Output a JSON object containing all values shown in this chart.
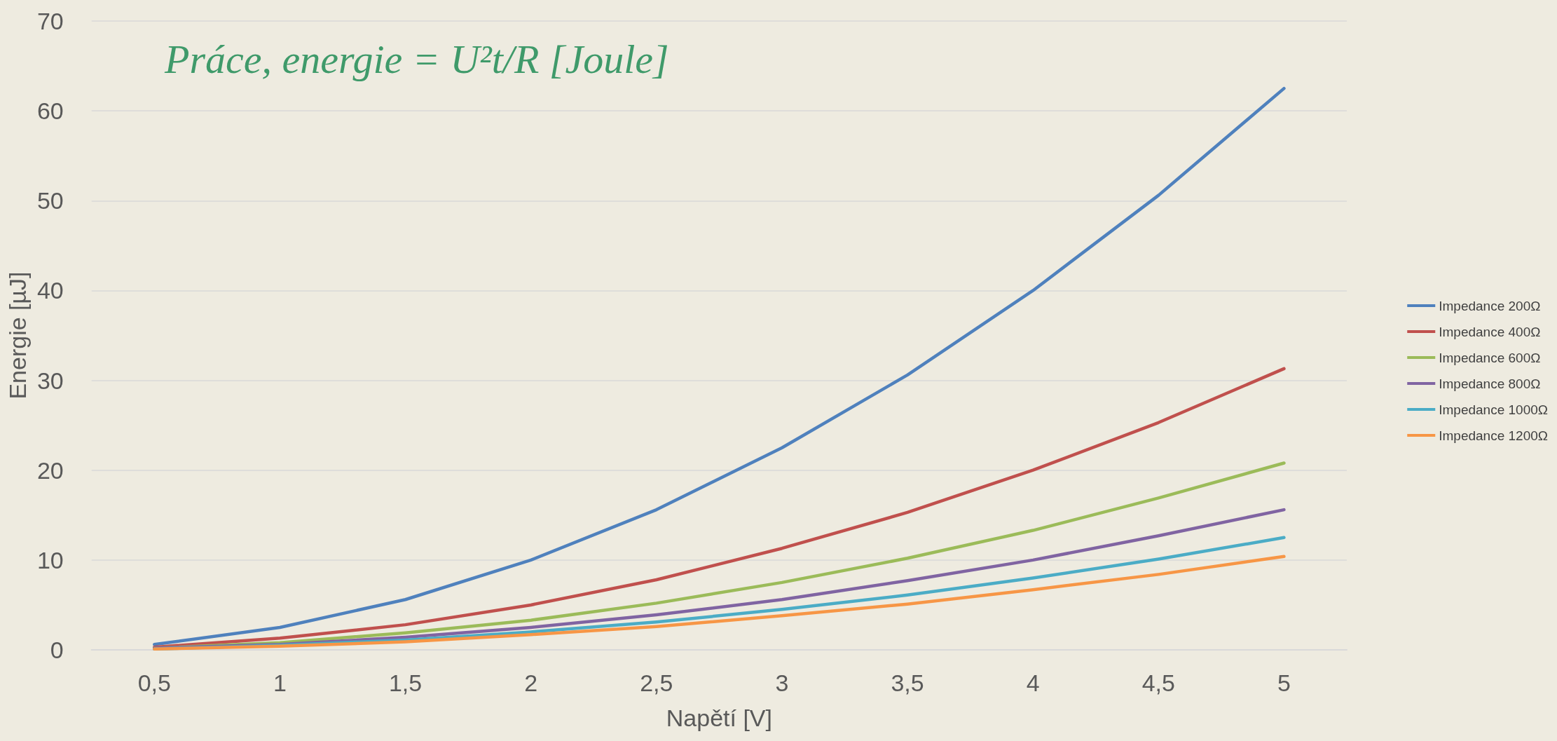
{
  "chart_data": {
    "type": "line",
    "xlabel": "Napětí [V]",
    "ylabel": "Energie [µJ]",
    "annotations": [
      "Práce, energie = U²t/R [Joule]"
    ],
    "categories": [
      "0,5",
      "1",
      "1,5",
      "2",
      "2,5",
      "3",
      "3,5",
      "4",
      "4,5",
      "5"
    ],
    "series": [
      {
        "name": "Impedance 200Ω",
        "color": "#4f81bd",
        "values": [
          0.6,
          2.5,
          5.6,
          10,
          15.6,
          22.5,
          30.6,
          40,
          50.6,
          62.5
        ]
      },
      {
        "name": "Impedance 400Ω",
        "color": "#c0504d",
        "values": [
          0.3,
          1.3,
          2.8,
          5,
          7.8,
          11.3,
          15.3,
          20,
          25.3,
          31.3
        ]
      },
      {
        "name": "Impedance 600Ω",
        "color": "#9bbb59",
        "values": [
          0.2,
          0.8,
          1.9,
          3.3,
          5.2,
          7.5,
          10.2,
          13.3,
          16.9,
          20.8
        ]
      },
      {
        "name": "Impedance 800Ω",
        "color": "#8064a2",
        "values": [
          0.2,
          0.6,
          1.4,
          2.5,
          3.9,
          5.6,
          7.7,
          10,
          12.7,
          15.6
        ]
      },
      {
        "name": "Impedance 1000Ω",
        "color": "#4bacc6",
        "values": [
          0.1,
          0.5,
          1.1,
          2,
          3.1,
          4.5,
          6.1,
          8,
          10.1,
          12.5
        ]
      },
      {
        "name": "Impedance 1200Ω",
        "color": "#f79646",
        "values": [
          0.1,
          0.4,
          0.9,
          1.7,
          2.6,
          3.8,
          5.1,
          6.7,
          8.4,
          10.4
        ]
      }
    ],
    "ylim": [
      0,
      70
    ],
    "yticks": [
      0,
      10,
      20,
      30,
      40,
      50,
      60,
      70
    ],
    "grid": "y",
    "legend": "right",
    "marker": "none",
    "line_style": "solid"
  }
}
